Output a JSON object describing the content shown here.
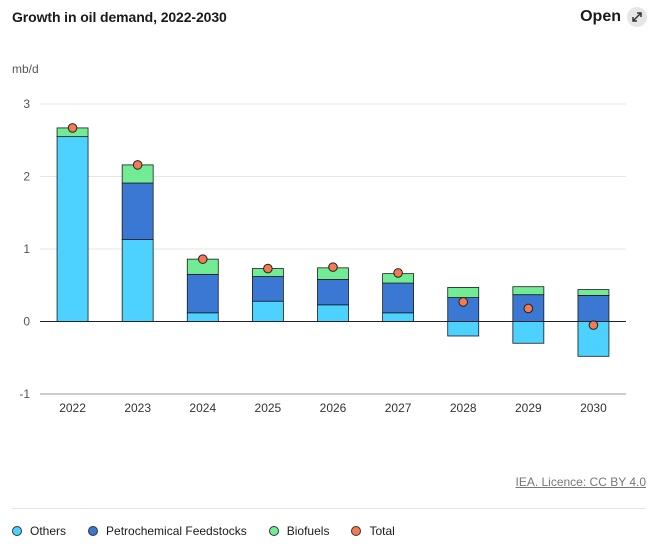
{
  "header": {
    "title": "Growth in oil demand, 2022-2030",
    "open_label": "Open"
  },
  "footer": {
    "license": "IEA. Licence: CC BY 4.0"
  },
  "colors": {
    "others": "#4dd2ff",
    "petrochemical": "#3a78d4",
    "biofuels": "#72ec94",
    "total": "#f47a52"
  },
  "chart_data": {
    "type": "bar",
    "stacked": true,
    "ylabel": "mb/d",
    "ylim": [
      -1,
      3
    ],
    "yticks": [
      "3",
      "2",
      "1",
      "0",
      "-1"
    ],
    "categories": [
      "2022",
      "2023",
      "2024",
      "2025",
      "2026",
      "2027",
      "2028",
      "2029",
      "2030"
    ],
    "series": [
      {
        "name": "Others",
        "values": [
          2.55,
          1.13,
          0.12,
          0.28,
          0.23,
          0.12,
          -0.2,
          -0.3,
          -0.48
        ]
      },
      {
        "name": "Petrochemical Feedstocks",
        "values": [
          0,
          0.78,
          0.53,
          0.34,
          0.35,
          0.41,
          0.33,
          0.37,
          0.36
        ]
      },
      {
        "name": "Biofuels",
        "values": [
          0.12,
          0.25,
          0.21,
          0.11,
          0.16,
          0.13,
          0.14,
          0.11,
          0.08
        ]
      },
      {
        "name": "Total",
        "type": "scatter",
        "values": [
          2.67,
          2.16,
          0.86,
          0.73,
          0.75,
          0.67,
          0.27,
          0.18,
          -0.05
        ]
      }
    ],
    "grid": true,
    "legend_position": "bottom"
  }
}
